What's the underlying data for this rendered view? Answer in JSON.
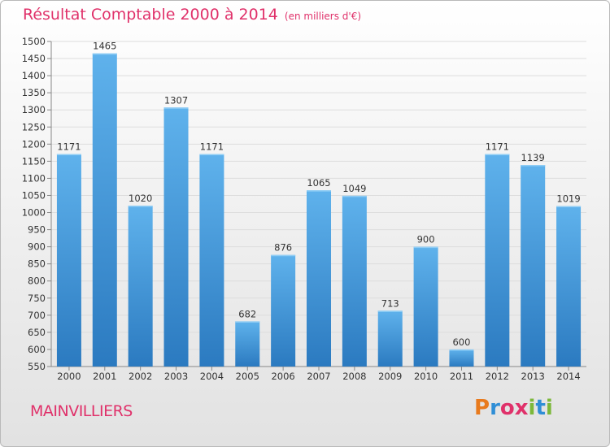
{
  "colors": {
    "bar_light": "#5fb2ec",
    "bar_dark": "#2b7ac0",
    "title": "#e0316a"
  },
  "title": "Résultat Comptable 2000 à 2014",
  "subtitle": "(en milliers d'€)",
  "city": "MAINVILLIERS",
  "logo": {
    "text": "Proxiti",
    "letters": [
      "P",
      "r",
      "o",
      "x",
      "i",
      "t",
      "i"
    ],
    "colors": [
      "#e87a1d",
      "#2f8ed6",
      "#e0316a",
      "#e0316a",
      "#7cb83a",
      "#2f8ed6",
      "#7cb83a"
    ]
  },
  "chart_data": {
    "type": "bar",
    "categories": [
      "2000",
      "2001",
      "2002",
      "2003",
      "2004",
      "2005",
      "2006",
      "2007",
      "2008",
      "2009",
      "2010",
      "2011",
      "2012",
      "2013",
      "2014"
    ],
    "values": [
      1171,
      1465,
      1020,
      1307,
      1171,
      682,
      876,
      1065,
      1049,
      713,
      900,
      600,
      1171,
      1139,
      1019
    ],
    "ylim": [
      550,
      1500
    ],
    "yticks": [
      550,
      600,
      650,
      700,
      750,
      800,
      850,
      900,
      950,
      1000,
      1050,
      1100,
      1150,
      1200,
      1250,
      1300,
      1350,
      1400,
      1450,
      1500
    ],
    "grid": true
  }
}
